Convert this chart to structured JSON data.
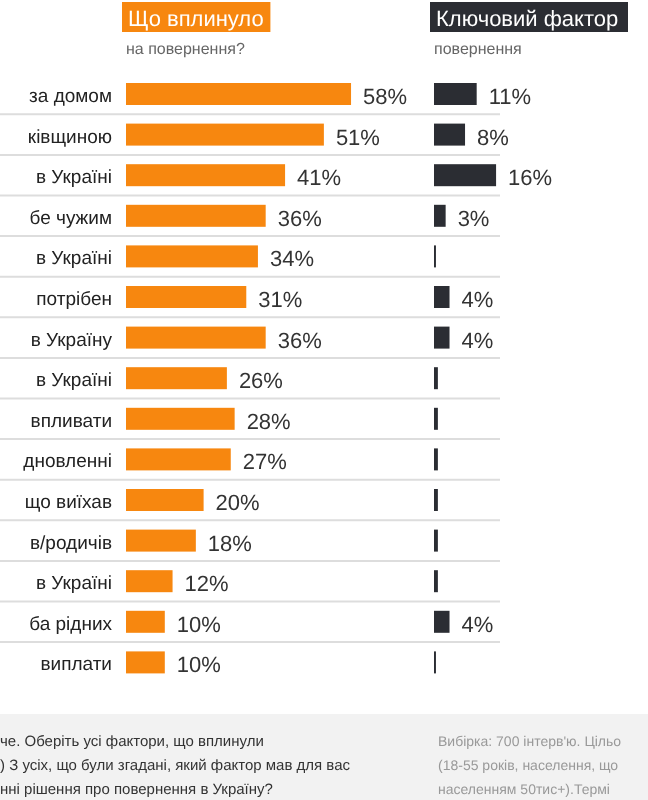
{
  "chart_data": [
    {
      "type": "bar",
      "orientation": "horizontal",
      "title": "Що вплинуло",
      "subtitle": "на повернення?",
      "categories": [
        "за домом",
        "ківщиною",
        "в Україні",
        "бе чужим",
        "в Україні",
        "потрібен",
        "в Україну",
        "в Україні",
        "впливати",
        "дновленні",
        "що виїхав",
        "в/родичів",
        "в Україні",
        "ба рідних",
        "виплати"
      ],
      "values": [
        58,
        51,
        41,
        36,
        34,
        31,
        36,
        26,
        28,
        27,
        20,
        18,
        12,
        10,
        10
      ],
      "value_labels": [
        "58%",
        "51%",
        "41%",
        "36%",
        "34%",
        "31%",
        "36%",
        "26%",
        "28%",
        "27%",
        "20%",
        "18%",
        "12%",
        "10%",
        "10%"
      ],
      "color": "#f7870f",
      "annotations": [
        "че. Оберіть усі фактори, що вплинули",
        ") З усіх, що були згадані, який фактор мав для вас",
        "нні рішення про повернення в Україну?"
      ]
    },
    {
      "type": "bar",
      "orientation": "horizontal",
      "title": "Ключовий фактор",
      "subtitle": "повернення",
      "categories": [
        null,
        null,
        null,
        null,
        null,
        null,
        null,
        null,
        null,
        null,
        null,
        null,
        null,
        null,
        null
      ],
      "values": [
        11,
        8,
        16,
        3,
        0.5,
        4,
        4,
        1,
        1,
        1,
        1,
        1,
        1,
        4,
        0.5
      ],
      "value_labels": [
        "11%",
        "8%",
        "16%",
        "3%",
        null,
        "4%",
        "4%",
        null,
        null,
        null,
        null,
        null,
        null,
        "4%",
        null
      ],
      "color": "#2b2d33",
      "annotations": [
        "Вибірка: 700 інтерв'ю. Цільо",
        "(18-55 років, населення, що",
        "населенням 50тис+).Термі"
      ]
    }
  ]
}
